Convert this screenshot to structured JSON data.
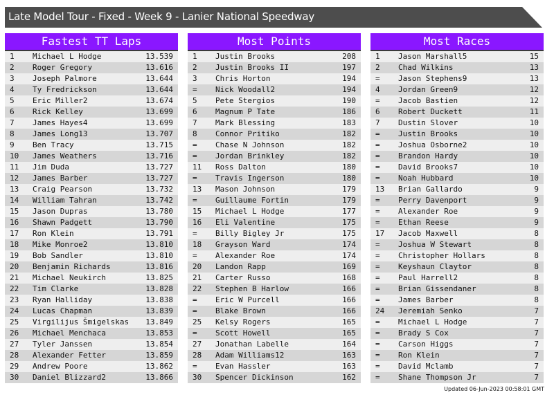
{
  "title": "Late Model Tour - Fixed - Week 9 - Lanier National Speedway",
  "footer": "Updated 06-Jun-2023 00:58:01 GMT",
  "colors": {
    "header": "#8a17ff",
    "titlebar": "#4d4d4d"
  },
  "panels": [
    {
      "title": "Fastest TT Laps",
      "rows": [
        [
          "1",
          "Michael L Hodge",
          "13.539"
        ],
        [
          "2",
          "Roger Gregory",
          "13.616"
        ],
        [
          "3",
          "Joseph Palmore",
          "13.644"
        ],
        [
          "4",
          "Ty Fredrickson",
          "13.644"
        ],
        [
          "5",
          "Eric Miller2",
          "13.674"
        ],
        [
          "6",
          "Rick Kelley",
          "13.699"
        ],
        [
          "7",
          "James Hayes4",
          "13.699"
        ],
        [
          "8",
          "James Long13",
          "13.707"
        ],
        [
          "9",
          "Ben Tracy",
          "13.715"
        ],
        [
          "10",
          "James Weathers",
          "13.716"
        ],
        [
          "11",
          "Jim Duda",
          "13.727"
        ],
        [
          "12",
          "James Barber",
          "13.727"
        ],
        [
          "13",
          "Craig Pearson",
          "13.732"
        ],
        [
          "14",
          "William Tahran",
          "13.742"
        ],
        [
          "15",
          "Jason Dupras",
          "13.780"
        ],
        [
          "16",
          "Shawn Padgett",
          "13.790"
        ],
        [
          "17",
          "Ron Klein",
          "13.791"
        ],
        [
          "18",
          "Mike Monroe2",
          "13.810"
        ],
        [
          "19",
          "Bob Sandler",
          "13.810"
        ],
        [
          "20",
          "Benjamin Richards",
          "13.816"
        ],
        [
          "21",
          "Michael Neukirch",
          "13.825"
        ],
        [
          "22",
          "Tim Clarke",
          "13.828"
        ],
        [
          "23",
          "Ryan Halliday",
          "13.838"
        ],
        [
          "24",
          "Lucas Chapman",
          "13.839"
        ],
        [
          "25",
          "Virgilijus Šmigelskas",
          "13.849"
        ],
        [
          "26",
          "Michael Menchaca",
          "13.853"
        ],
        [
          "27",
          "Tyler Janssen",
          "13.854"
        ],
        [
          "28",
          "Alexander Fetter",
          "13.859"
        ],
        [
          "29",
          "Andrew Poore",
          "13.862"
        ],
        [
          "30",
          "Daniel Blizzard2",
          "13.866"
        ]
      ]
    },
    {
      "title": "Most Points",
      "rows": [
        [
          "1",
          "Justin Brooks",
          "208"
        ],
        [
          "2",
          "Justin Brooks II",
          "197"
        ],
        [
          "3",
          "Chris Horton",
          "194"
        ],
        [
          "=",
          "Nick Woodall2",
          "194"
        ],
        [
          "5",
          "Pete Stergios",
          "190"
        ],
        [
          "6",
          "Magnum P Tate",
          "186"
        ],
        [
          "7",
          "Mark Blessing",
          "183"
        ],
        [
          "8",
          "Connor Pritiko",
          "182"
        ],
        [
          "=",
          "Chase N Johnson",
          "182"
        ],
        [
          "=",
          "Jordan Brinkley",
          "182"
        ],
        [
          "11",
          "Ross Dalton",
          "180"
        ],
        [
          "=",
          "Travis Ingerson",
          "180"
        ],
        [
          "13",
          "Mason Johnson",
          "179"
        ],
        [
          "=",
          "Guillaume Fortin",
          "179"
        ],
        [
          "15",
          "Michael L Hodge",
          "177"
        ],
        [
          "16",
          "Eli Valentine",
          "175"
        ],
        [
          "=",
          "Billy Bigley Jr",
          "175"
        ],
        [
          "18",
          "Grayson Ward",
          "174"
        ],
        [
          "=",
          "Alexander Roe",
          "174"
        ],
        [
          "20",
          "Landon Rapp",
          "169"
        ],
        [
          "21",
          "Carter Russo",
          "168"
        ],
        [
          "22",
          "Stephen B Harlow",
          "166"
        ],
        [
          "=",
          "Eric W Purcell",
          "166"
        ],
        [
          "=",
          "Blake Brown",
          "166"
        ],
        [
          "25",
          "Kelsy Rogers",
          "165"
        ],
        [
          "=",
          "Scott Howell",
          "165"
        ],
        [
          "27",
          "Jonathan Labelle",
          "164"
        ],
        [
          "28",
          "Adam Williams12",
          "163"
        ],
        [
          "=",
          "Evan Hassler",
          "163"
        ],
        [
          "30",
          "Spencer Dickinson",
          "162"
        ]
      ]
    },
    {
      "title": "Most Races",
      "rows": [
        [
          "1",
          "Jason Marshall5",
          "15"
        ],
        [
          "2",
          "Chad Wilkins",
          "13"
        ],
        [
          "=",
          "Jason Stephens9",
          "13"
        ],
        [
          "4",
          "Jordan Green9",
          "12"
        ],
        [
          "=",
          "Jacob Bastien",
          "12"
        ],
        [
          "6",
          "Robert Duckett",
          "11"
        ],
        [
          "7",
          "Dustin Slover",
          "10"
        ],
        [
          "=",
          "Justin Brooks",
          "10"
        ],
        [
          "=",
          "Joshua Osborne2",
          "10"
        ],
        [
          "=",
          "Brandon Hardy",
          "10"
        ],
        [
          "=",
          "David Brooks7",
          "10"
        ],
        [
          "=",
          "Noah Hubbard",
          "10"
        ],
        [
          "13",
          "Brian Gallardo",
          "9"
        ],
        [
          "=",
          "Perry Davenport",
          "9"
        ],
        [
          "=",
          "Alexander Roe",
          "9"
        ],
        [
          "=",
          "Ethan Reese",
          "9"
        ],
        [
          "17",
          "Jacob Maxwell",
          "8"
        ],
        [
          "=",
          "Joshua W Stewart",
          "8"
        ],
        [
          "=",
          "Christopher Hollars",
          "8"
        ],
        [
          "=",
          "Keyshaun Claytor",
          "8"
        ],
        [
          "=",
          "Paul Harrell2",
          "8"
        ],
        [
          "=",
          "Brian Gissendaner",
          "8"
        ],
        [
          "=",
          "James Barber",
          "8"
        ],
        [
          "24",
          "Jeremiah Senko",
          "7"
        ],
        [
          "=",
          "Michael L Hodge",
          "7"
        ],
        [
          "=",
          "Brady S Cox",
          "7"
        ],
        [
          "=",
          "Carson Higgs",
          "7"
        ],
        [
          "=",
          "Ron Klein",
          "7"
        ],
        [
          "=",
          "David Mclamb",
          "7"
        ],
        [
          "=",
          "Shane Thompson Jr",
          "7"
        ]
      ]
    }
  ]
}
